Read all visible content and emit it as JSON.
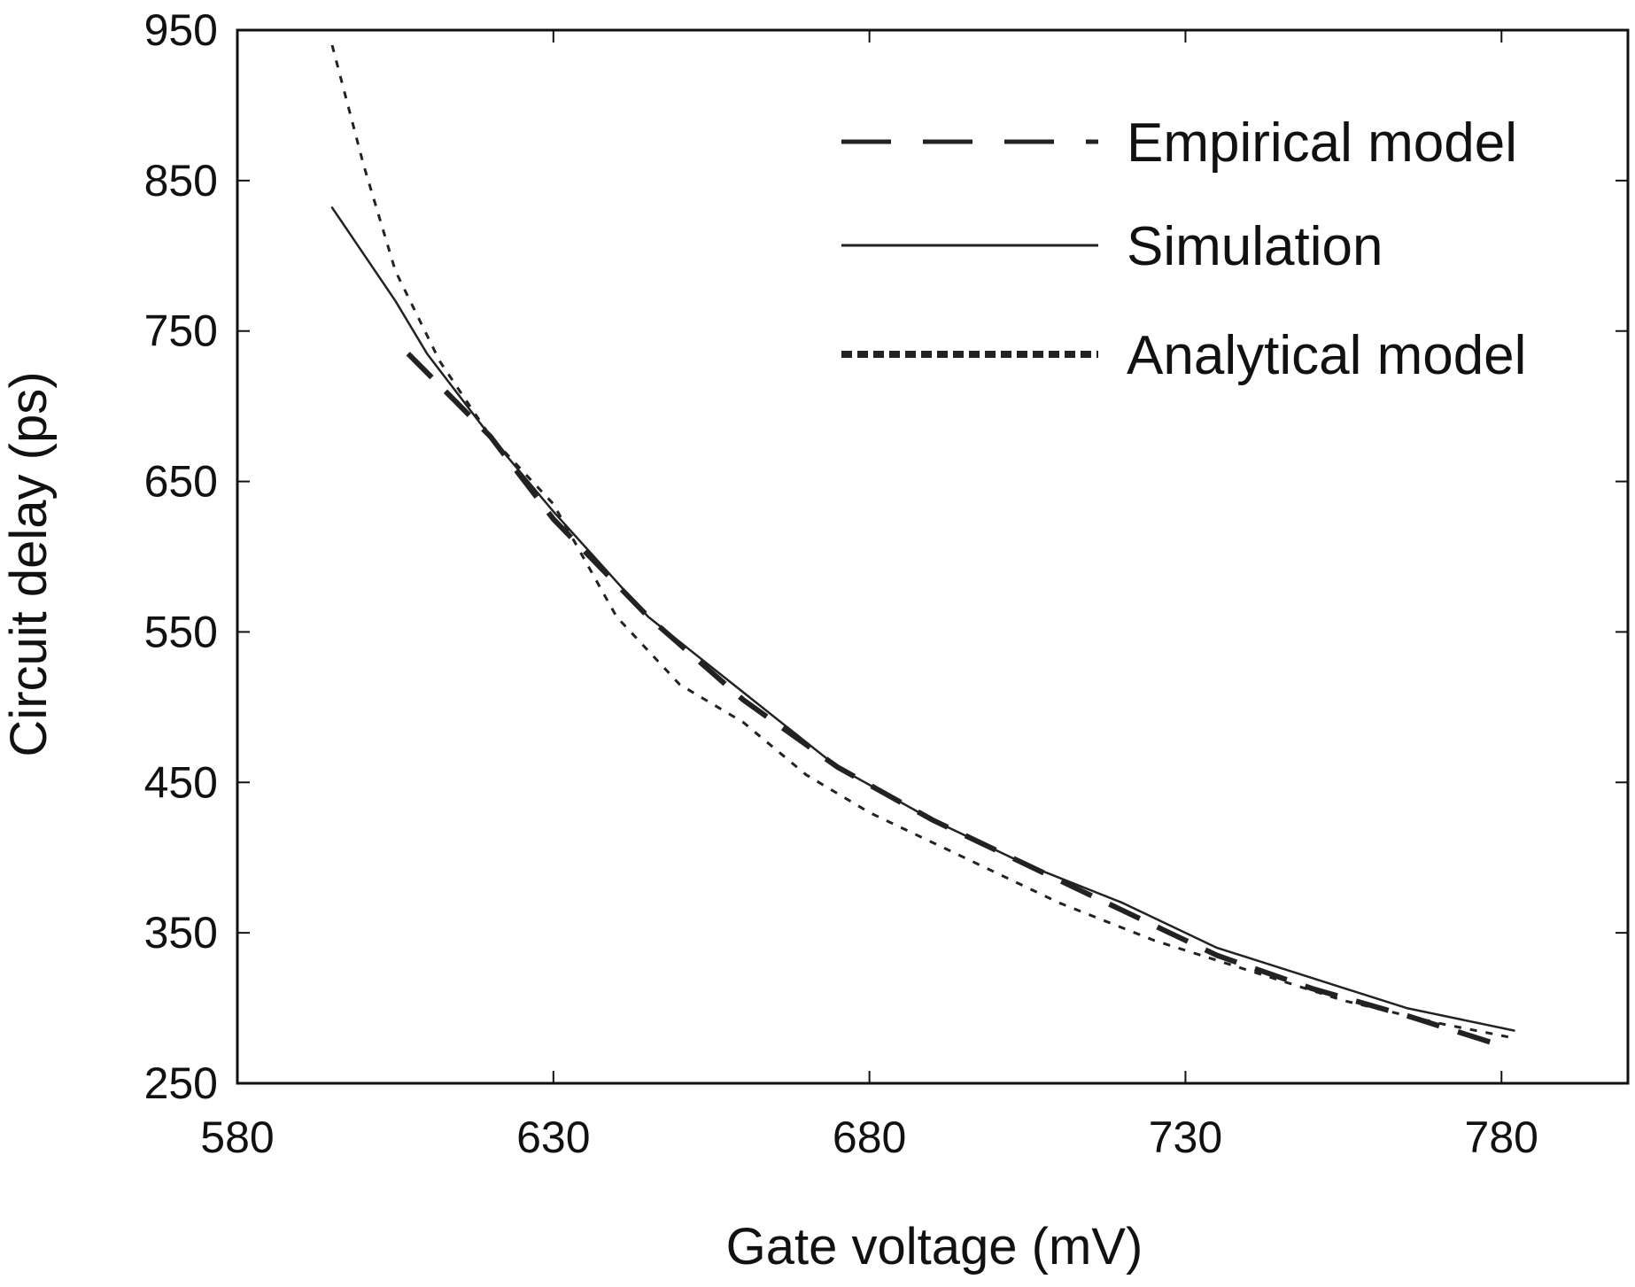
{
  "chart_data": {
    "type": "line",
    "title": "",
    "xlabel": "Gate voltage (mV)",
    "ylabel": "Circuit delay (ps)",
    "xlim": [
      580,
      800
    ],
    "ylim": [
      250,
      950
    ],
    "xticks": [
      580,
      630,
      680,
      730,
      780
    ],
    "yticks": [
      250,
      350,
      450,
      550,
      650,
      750,
      850,
      950
    ],
    "x_tick_labels": [
      "580",
      "630",
      "680",
      "730",
      "780"
    ],
    "y_tick_labels": [
      "250",
      "350",
      "450",
      "550",
      "650",
      "750",
      "850",
      "950"
    ],
    "grid": false,
    "legend": {
      "position": "top-right",
      "entries": [
        "Empirical model",
        "Simulation",
        "Analytical model"
      ]
    },
    "series": [
      {
        "name": "Empirical model",
        "style": "long-dash",
        "color": "#222222",
        "x": [
          607,
          620,
          630,
          645,
          660,
          675,
          690,
          705,
          720,
          735,
          750,
          765,
          780
        ],
        "y": [
          735,
          680,
          625,
          560,
          505,
          460,
          425,
          395,
          365,
          335,
          313,
          295,
          275
        ]
      },
      {
        "name": "Simulation",
        "style": "solid",
        "color": "#222222",
        "x": [
          595,
          605,
          610,
          620,
          630,
          645,
          660,
          675,
          690,
          705,
          720,
          735,
          750,
          765,
          782
        ],
        "y": [
          832,
          770,
          735,
          680,
          630,
          560,
          510,
          460,
          425,
          395,
          370,
          340,
          320,
          300,
          285
        ]
      },
      {
        "name": "Analytical model",
        "style": "dotted",
        "color": "#222222",
        "x": [
          595,
          600,
          605,
          612,
          620,
          630,
          640,
          650,
          660,
          670,
          680,
          695,
          710,
          725,
          740,
          755,
          770,
          782
        ],
        "y": [
          940,
          860,
          790,
          730,
          680,
          635,
          560,
          515,
          490,
          455,
          430,
          400,
          370,
          345,
          325,
          305,
          290,
          280
        ]
      }
    ]
  }
}
